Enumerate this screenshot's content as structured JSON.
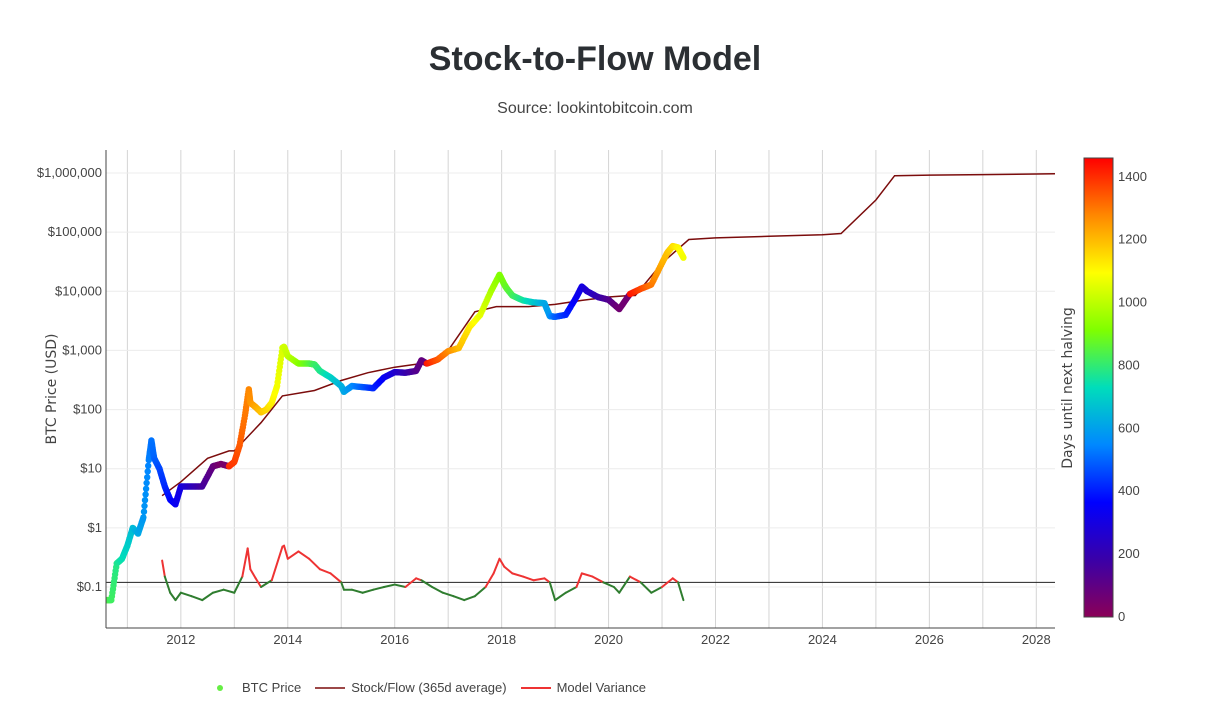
{
  "chart_data": {
    "type": "scatter",
    "title": "Stock-to-Flow Model",
    "subtitle": "Source: lookintobitcoin.com",
    "ylabel": "BTC Price (USD)",
    "y_scale": "log",
    "ylim": [
      0.03,
      2000000
    ],
    "xlim": [
      2010.6,
      2028.35
    ],
    "x_ticks": [
      2012,
      2014,
      2016,
      2018,
      2020,
      2022,
      2024,
      2026,
      2028
    ],
    "x_tick_labels": [
      "2012",
      "2014",
      "2016",
      "2018",
      "2020",
      "2022",
      "2024",
      "2026",
      "2028"
    ],
    "y_ticks": [
      0.1,
      1,
      10,
      100,
      1000,
      10000,
      100000,
      1000000
    ],
    "y_tick_labels": [
      "$0.1",
      "$1",
      "$10",
      "$100",
      "$1,000",
      "$10,000",
      "$100,000",
      "$1,000,000"
    ],
    "grid": true,
    "reference_line_y": 0.12,
    "colorbar": {
      "label": "Days until next halving",
      "min": 0,
      "max": 1460,
      "ticks": [
        0,
        200,
        400,
        600,
        800,
        1000,
        1200,
        1400
      ],
      "tick_labels": [
        "0",
        "200",
        "400",
        "600",
        "800",
        "1000",
        "1200",
        "1400"
      ],
      "colorscale": [
        "#8b0057",
        "#3a00a8",
        "#0000ff",
        "#0088ff",
        "#00ddbb",
        "#7fff00",
        "#ffff00",
        "#ff8800",
        "#ff0000"
      ]
    },
    "legend_placement": "bottom",
    "series": [
      {
        "name": "BTC Price",
        "kind": "markers",
        "color_by": "days_until_halving",
        "x": [
          2010.6,
          2010.7,
          2010.8,
          2010.9,
          2011.0,
          2011.1,
          2011.2,
          2011.3,
          2011.4,
          2011.45,
          2011.5,
          2011.6,
          2011.7,
          2011.8,
          2011.9,
          2012.0,
          2012.2,
          2012.4,
          2012.6,
          2012.75,
          2012.9,
          2013.0,
          2013.1,
          2013.2,
          2013.27,
          2013.3,
          2013.4,
          2013.5,
          2013.6,
          2013.7,
          2013.8,
          2013.9,
          2013.93,
          2014.0,
          2014.2,
          2014.4,
          2014.5,
          2014.6,
          2014.8,
          2015.0,
          2015.05,
          2015.2,
          2015.4,
          2015.6,
          2015.8,
          2016.0,
          2016.2,
          2016.4,
          2016.5,
          2016.6,
          2016.8,
          2017.0,
          2017.2,
          2017.4,
          2017.6,
          2017.8,
          2017.96,
          2018.05,
          2018.1,
          2018.2,
          2018.4,
          2018.6,
          2018.8,
          2018.9,
          2019.0,
          2019.2,
          2019.4,
          2019.5,
          2019.6,
          2019.8,
          2020.0,
          2020.2,
          2020.4,
          2020.6,
          2020.8,
          2021.0,
          2021.1,
          2021.2,
          2021.3,
          2021.4
        ],
        "y": [
          0.06,
          0.06,
          0.25,
          0.3,
          0.5,
          1.0,
          0.8,
          1.5,
          14,
          30,
          15,
          10,
          5,
          3,
          2.5,
          5,
          5,
          5,
          11,
          12,
          11,
          13,
          25,
          80,
          220,
          130,
          110,
          90,
          100,
          130,
          250,
          1100,
          1150,
          800,
          600,
          600,
          580,
          450,
          350,
          250,
          200,
          250,
          240,
          230,
          350,
          430,
          420,
          450,
          680,
          600,
          700,
          970,
          1100,
          2500,
          4000,
          10000,
          19000,
          13000,
          11000,
          8500,
          7000,
          6500,
          6300,
          3800,
          3700,
          4000,
          8000,
          12000,
          10000,
          8000,
          7200,
          5000,
          9000,
          11000,
          13000,
          30000,
          45000,
          58000,
          55000,
          37000
        ],
        "halving_days": [
          860,
          820,
          780,
          740,
          700,
          660,
          620,
          580,
          540,
          520,
          500,
          460,
          420,
          380,
          340,
          300,
          230,
          160,
          90,
          40,
          1400,
          1380,
          1340,
          1300,
          1280,
          1260,
          1230,
          1190,
          1160,
          1120,
          1080,
          1040,
          1030,
          1010,
          930,
          860,
          820,
          780,
          710,
          640,
          620,
          560,
          490,
          420,
          350,
          270,
          200,
          130,
          90,
          1430,
          1350,
          1280,
          1200,
          1130,
          1060,
          980,
          920,
          890,
          870,
          830,
          760,
          690,
          620,
          580,
          500,
          420,
          340,
          310,
          270,
          200,
          130,
          60,
          1440,
          1370,
          1300,
          1220,
          1190,
          1150,
          1110,
          1080
        ]
      },
      {
        "name": "Stock/Flow (365d average)",
        "kind": "line",
        "color": "#7b0c0c",
        "x": [
          2011.65,
          2012.0,
          2012.5,
          2012.9,
          2013.0,
          2013.5,
          2013.9,
          2014.5,
          2015.0,
          2015.5,
          2016.0,
          2016.5,
          2016.6,
          2017.0,
          2017.5,
          2017.9,
          2018.5,
          2019.0,
          2019.5,
          2020.0,
          2020.4,
          2020.5,
          2021.0,
          2021.5,
          2022.0,
          2023.0,
          2024.0,
          2024.35,
          2025.0,
          2025.35,
          2026.0,
          2027.0,
          2028.0,
          2028.35
        ],
        "y": [
          3.5,
          6,
          15,
          20,
          20,
          60,
          170,
          210,
          310,
          420,
          520,
          600,
          600,
          1000,
          4500,
          5500,
          5500,
          6000,
          7000,
          8000,
          8500,
          8500,
          30000,
          75000,
          80000,
          85000,
          90000,
          95000,
          350000,
          900000,
          920000,
          940000,
          960000,
          970000
        ]
      },
      {
        "name": "Model Variance",
        "kind": "line",
        "color": "#ee3333",
        "secondary_color": "#2f7d2f",
        "threshold": 0.12,
        "x": [
          2011.65,
          2011.7,
          2011.8,
          2011.9,
          2012.0,
          2012.2,
          2012.4,
          2012.6,
          2012.8,
          2013.0,
          2013.15,
          2013.25,
          2013.3,
          2013.4,
          2013.5,
          2013.7,
          2013.9,
          2013.93,
          2014.0,
          2014.2,
          2014.4,
          2014.6,
          2014.8,
          2015.0,
          2015.05,
          2015.2,
          2015.4,
          2015.6,
          2015.8,
          2016.0,
          2016.2,
          2016.4,
          2016.5,
          2016.7,
          2016.9,
          2017.1,
          2017.3,
          2017.5,
          2017.7,
          2017.85,
          2017.96,
          2018.05,
          2018.2,
          2018.4,
          2018.6,
          2018.8,
          2018.9,
          2019.0,
          2019.2,
          2019.4,
          2019.5,
          2019.7,
          2019.9,
          2020.1,
          2020.2,
          2020.4,
          2020.6,
          2020.8,
          2021.0,
          2021.2,
          2021.3,
          2021.4
        ],
        "y": [
          0.28,
          0.15,
          0.08,
          0.06,
          0.08,
          0.07,
          0.06,
          0.08,
          0.09,
          0.08,
          0.15,
          0.45,
          0.2,
          0.14,
          0.1,
          0.13,
          0.48,
          0.5,
          0.3,
          0.4,
          0.3,
          0.2,
          0.17,
          0.12,
          0.09,
          0.09,
          0.08,
          0.09,
          0.1,
          0.11,
          0.1,
          0.14,
          0.13,
          0.1,
          0.08,
          0.07,
          0.06,
          0.07,
          0.1,
          0.17,
          0.3,
          0.22,
          0.17,
          0.15,
          0.13,
          0.14,
          0.12,
          0.06,
          0.08,
          0.1,
          0.17,
          0.15,
          0.12,
          0.1,
          0.08,
          0.15,
          0.12,
          0.08,
          0.1,
          0.14,
          0.12,
          0.06
        ]
      }
    ]
  }
}
